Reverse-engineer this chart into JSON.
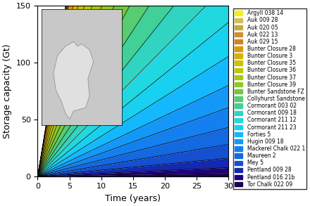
{
  "title": "",
  "xlabel": "Time (years)",
  "ylabel": "Storage capacity (Gt)",
  "xlim": [
    0,
    30
  ],
  "ylim": [
    0,
    150
  ],
  "xticks": [
    0,
    5,
    10,
    15,
    20,
    25,
    30
  ],
  "yticks": [
    0,
    50,
    100,
    150
  ],
  "series": [
    {
      "label": "Tor Chalk 022 09",
      "rate": 0.1,
      "color": "#1a0050"
    },
    {
      "label": "Pentland 016 21b",
      "rate": 0.15,
      "color": "#200080"
    },
    {
      "label": "Pentland 009 28",
      "rate": 0.28,
      "color": "#1428b0"
    },
    {
      "label": "Mey 5",
      "rate": 0.4,
      "color": "#1450d0"
    },
    {
      "label": "Maureen 2",
      "rate": 0.5,
      "color": "#1468e0"
    },
    {
      "label": "Mackerel Chalk 022 1",
      "rate": 0.58,
      "color": "#1480f0"
    },
    {
      "label": "Hugin 009 18",
      "rate": 0.65,
      "color": "#1498f8"
    },
    {
      "label": "Forties 5",
      "rate": 0.85,
      "color": "#14b8ff"
    },
    {
      "label": "Cormorant 211 23",
      "rate": 1.0,
      "color": "#18d0f0"
    },
    {
      "label": "Cormorant 211 12",
      "rate": 1.15,
      "color": "#20d8e0"
    },
    {
      "label": "Cormorant 009 18",
      "rate": 1.35,
      "color": "#30d4c0"
    },
    {
      "label": "Cormorant 003 02",
      "rate": 1.55,
      "color": "#40d098"
    },
    {
      "label": "Collyhurst Sandstone",
      "rate": 1.8,
      "color": "#58cc70"
    },
    {
      "label": "Bunter Sandstone FZ",
      "rate": 2.1,
      "color": "#70c840"
    },
    {
      "label": "Bunter Closure 39",
      "rate": 2.4,
      "color": "#90c828"
    },
    {
      "label": "Bunter Closure 37",
      "rate": 2.65,
      "color": "#a8c815"
    },
    {
      "label": "Bunter Closure 36",
      "rate": 2.9,
      "color": "#bec808"
    },
    {
      "label": "Bunter Closure 35",
      "rate": 3.15,
      "color": "#cec005"
    },
    {
      "label": "Bunter Closure 3",
      "rate": 3.4,
      "color": "#d8b005"
    },
    {
      "label": "Bunter Closure 28",
      "rate": 3.8,
      "color": "#de9a05"
    },
    {
      "label": "Auk 029 15",
      "rate": 0.95,
      "color": "#d88020"
    },
    {
      "label": "Auk 022 13",
      "rate": 0.8,
      "color": "#cc9030"
    },
    {
      "label": "Auk 020 05",
      "rate": 0.7,
      "color": "#c8a840"
    },
    {
      "label": "Auk 009 28",
      "rate": 0.6,
      "color": "#d4c050"
    },
    {
      "label": "Argyll 038 14",
      "rate": 0.5,
      "color": "#f0f020"
    }
  ],
  "figsize": [
    4.4,
    2.93
  ],
  "dpi": 100,
  "legend_fontsize": 5.5,
  "axis_fontsize": 9,
  "tick_fontsize": 8,
  "linewidth": 0.5,
  "background_color": "#ffffff"
}
